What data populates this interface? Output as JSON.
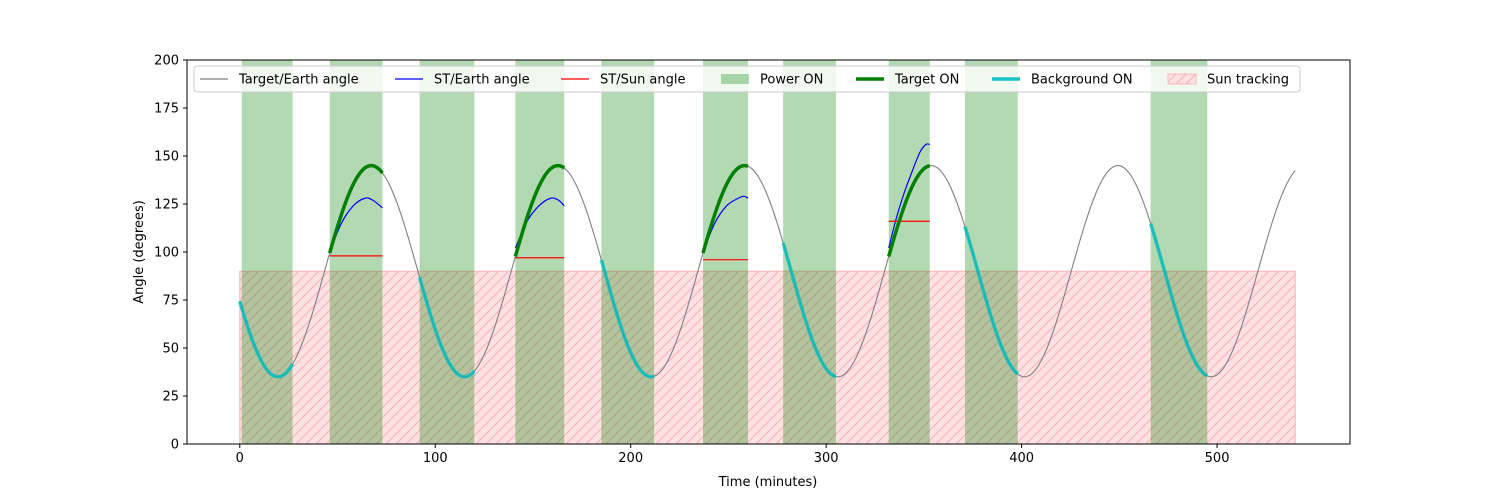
{
  "chart_data": {
    "type": "line",
    "title": "",
    "xlabel": "Time (minutes)",
    "ylabel": "Angle (degrees)",
    "xlim": [
      -27,
      568
    ],
    "ylim": [
      0,
      200
    ],
    "x_ticks": [
      0,
      100,
      200,
      300,
      400,
      500
    ],
    "y_ticks": [
      0,
      25,
      50,
      75,
      100,
      125,
      150,
      175,
      200
    ],
    "grid": false,
    "legend_position": "top",
    "colors": {
      "target_earth": "#808080",
      "st_earth": "#0000ff",
      "st_sun": "#ff0000",
      "power_on": "#008000",
      "target_on": "#008000",
      "background_on": "#00bfbf",
      "sun_tracking": "#ff9999"
    },
    "legend": [
      {
        "key": "target_earth",
        "label": "Target/Earth angle",
        "kind": "line"
      },
      {
        "key": "st_earth",
        "label": "ST/Earth angle",
        "kind": "line"
      },
      {
        "key": "st_sun",
        "label": "ST/Sun angle",
        "kind": "line"
      },
      {
        "key": "power_on",
        "label": "Power ON",
        "kind": "patch"
      },
      {
        "key": "target_on",
        "label": "Target ON",
        "kind": "thick"
      },
      {
        "key": "background_on",
        "label": "Background ON",
        "kind": "thick"
      },
      {
        "key": "sun_tracking",
        "label": "Sun tracking",
        "kind": "hatch"
      }
    ],
    "target_earth_model": {
      "description_of_curve": "sinusoid",
      "mean_deg": 90,
      "amplitude_deg": 55,
      "period_min": 95.5,
      "min_at_min": 19.5,
      "t_start": 0,
      "t_end": 540
    },
    "power_on_intervals": [
      [
        1,
        27
      ],
      [
        46,
        73
      ],
      [
        92,
        120
      ],
      [
        141,
        166
      ],
      [
        185,
        212
      ],
      [
        237,
        260
      ],
      [
        278,
        305
      ],
      [
        332,
        353
      ],
      [
        371,
        398
      ],
      [
        466,
        495
      ]
    ],
    "sun_tracking_intervals": [
      [
        0,
        540
      ]
    ],
    "sun_tracking_max_deg": 90,
    "target_on_intervals": [
      [
        46,
        73
      ],
      [
        141,
        166
      ],
      [
        237,
        260
      ],
      [
        332,
        353
      ]
    ],
    "background_on_intervals": [
      [
        0,
        27
      ],
      [
        92,
        120
      ],
      [
        185,
        212
      ],
      [
        278,
        305
      ],
      [
        371,
        398
      ],
      [
        466,
        495
      ]
    ],
    "st_earth_series": [
      {
        "x": [
          46,
          52,
          58,
          64,
          68,
          73
        ],
        "y": [
          100,
          115,
          124,
          128,
          127,
          123
        ]
      },
      {
        "x": [
          141,
          147,
          153,
          159,
          163,
          166
        ],
        "y": [
          102,
          116,
          124,
          128,
          127,
          124
        ]
      },
      {
        "x": [
          237,
          243,
          249,
          255,
          258,
          260
        ],
        "y": [
          100,
          115,
          124,
          128,
          129,
          128
        ]
      },
      {
        "x": [
          332,
          336,
          340,
          344,
          348,
          351,
          353
        ],
        "y": [
          102,
          118,
          131,
          142,
          152,
          156,
          156
        ]
      }
    ],
    "st_sun_series": [
      {
        "x": [
          46,
          73
        ],
        "y": [
          98,
          98
        ]
      },
      {
        "x": [
          141,
          166
        ],
        "y": [
          97,
          97
        ]
      },
      {
        "x": [
          237,
          260
        ],
        "y": [
          96,
          96
        ]
      },
      {
        "x": [
          332,
          353
        ],
        "y": [
          116,
          116
        ]
      }
    ]
  }
}
